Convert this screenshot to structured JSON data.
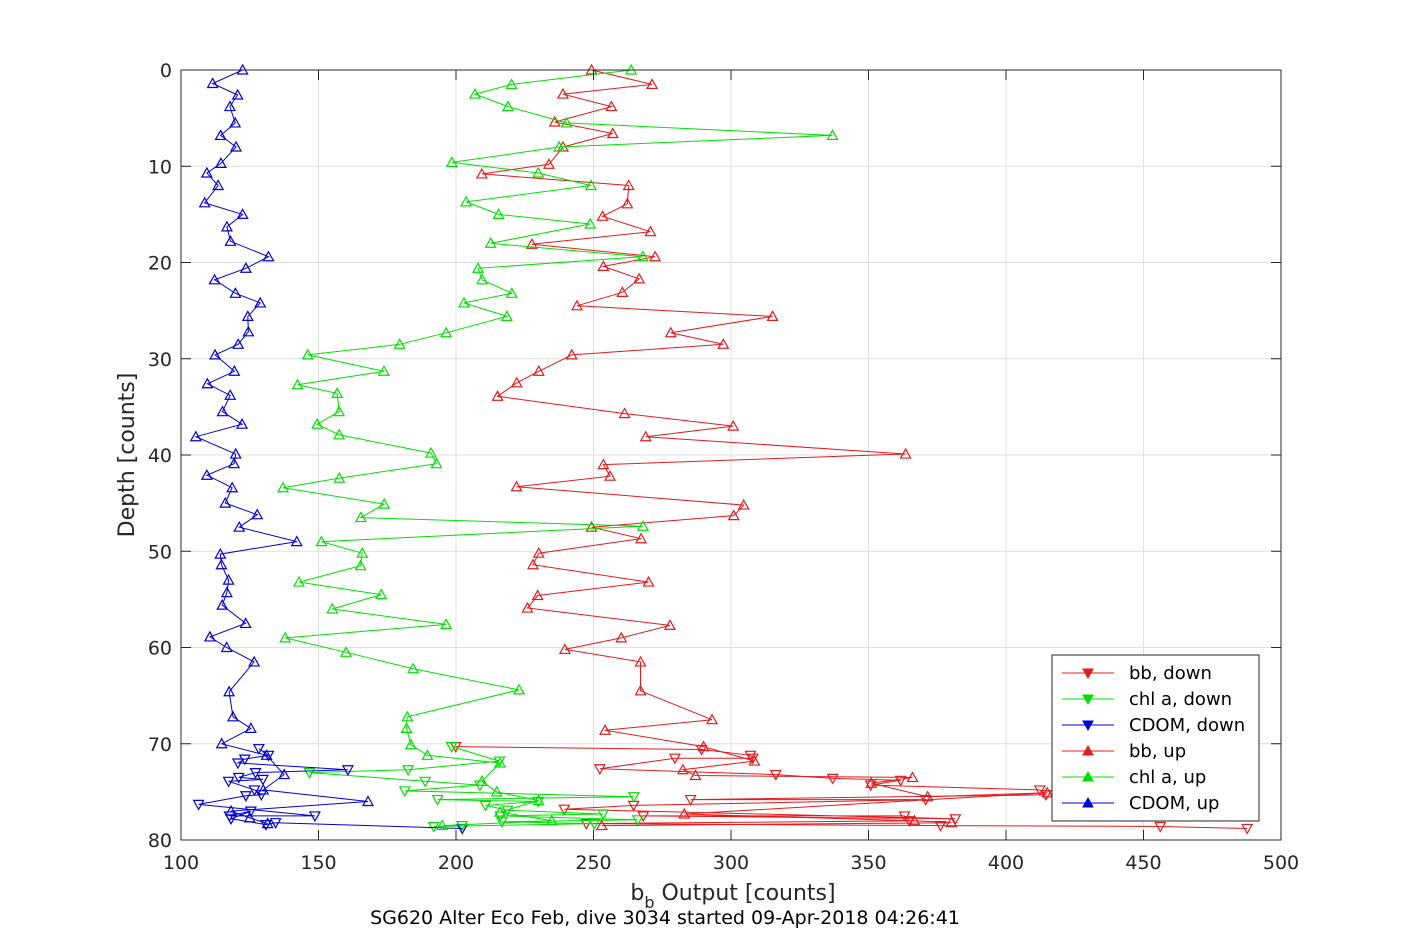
{
  "chart_data": {
    "type": "line",
    "xlabel_main": "b",
    "xlabel_sub": "b",
    "xlabel_rest": " Output [counts]",
    "ylabel": "Depth [counts]",
    "caption": "SG620 Alter Eco Feb, dive 3034 started 09-Apr-2018 04:26:41",
    "xlim": [
      100,
      500
    ],
    "ylim": [
      0,
      80
    ],
    "y_reversed": true,
    "grid": true,
    "legend_position": "bottom-right",
    "xticks": [
      100,
      150,
      200,
      250,
      300,
      350,
      400,
      450,
      500
    ],
    "yticks": [
      0,
      10,
      20,
      30,
      40,
      50,
      60,
      70,
      80
    ],
    "series": [
      {
        "name": "bb, down",
        "color": "#e41a1c",
        "marker": "triangle-down",
        "points": [
          [
            199.9,
            70.3
          ],
          [
            289.3,
            70.6
          ],
          [
            307.1,
            71.2
          ],
          [
            307.9,
            71.5
          ],
          [
            279.6,
            71.5
          ],
          [
            252.3,
            72.6
          ],
          [
            316.3,
            73.2
          ],
          [
            337.0,
            73.6
          ],
          [
            361.7,
            73.8
          ],
          [
            350.8,
            74.3
          ],
          [
            412.3,
            74.8
          ],
          [
            414.5,
            75.3
          ],
          [
            285.3,
            75.8
          ],
          [
            370.8,
            75.8
          ],
          [
            264.6,
            76.4
          ],
          [
            239.4,
            76.8
          ],
          [
            381.6,
            77.8
          ],
          [
            268.1,
            77.5
          ],
          [
            363.1,
            77.5
          ],
          [
            364.9,
            78.0
          ],
          [
            247.4,
            78.3
          ],
          [
            376.2,
            78.5
          ],
          [
            456.1,
            78.6
          ],
          [
            487.7,
            78.8
          ]
        ]
      },
      {
        "name": "chl a, down",
        "color": "#00e000",
        "marker": "triangle-down",
        "points": [
          [
            198.4,
            70.3
          ],
          [
            215.8,
            71.8
          ],
          [
            182.6,
            72.7
          ],
          [
            146.7,
            73.0
          ],
          [
            188.8,
            73.9
          ],
          [
            208.7,
            74.3
          ],
          [
            181.4,
            74.9
          ],
          [
            264.7,
            75.5
          ],
          [
            193.3,
            75.8
          ],
          [
            229.9,
            76.0
          ],
          [
            210.7,
            76.4
          ],
          [
            218.7,
            76.9
          ],
          [
            253.5,
            77.3
          ],
          [
            216.1,
            77.5
          ],
          [
            266.1,
            77.9
          ],
          [
            216.7,
            78.1
          ],
          [
            250.3,
            78.3
          ],
          [
            191.9,
            78.6
          ],
          [
            202.2,
            78.5
          ]
        ]
      },
      {
        "name": "CDOM, down",
        "color": "#0000d9",
        "marker": "triangle-down",
        "points": [
          [
            128.3,
            70.5
          ],
          [
            131.8,
            71.2
          ],
          [
            123.2,
            71.6
          ],
          [
            120.7,
            72.0
          ],
          [
            160.7,
            72.7
          ],
          [
            127.1,
            73.0
          ],
          [
            121.0,
            73.5
          ],
          [
            129.8,
            73.7
          ],
          [
            117.3,
            73.9
          ],
          [
            126.7,
            74.8
          ],
          [
            129.2,
            75.3
          ],
          [
            123.6,
            75.4
          ],
          [
            106.4,
            76.3
          ],
          [
            148.7,
            77.5
          ],
          [
            117.6,
            77.5
          ],
          [
            125.4,
            77.0
          ],
          [
            118.2,
            77.8
          ],
          [
            130.9,
            78.4
          ],
          [
            134.4,
            78.2
          ],
          [
            202.3,
            78.8
          ]
        ]
      },
      {
        "name": "bb, up",
        "color": "#e41a1c",
        "marker": "triangle-up",
        "points": [
          [
            249.3,
            0.0
          ],
          [
            271.3,
            1.5
          ],
          [
            238.9,
            2.5
          ],
          [
            256.5,
            3.8
          ],
          [
            235.9,
            5.4
          ],
          [
            257.0,
            6.6
          ],
          [
            238.9,
            8.0
          ],
          [
            233.8,
            9.8
          ],
          [
            209.4,
            10.8
          ],
          [
            262.8,
            12.0
          ],
          [
            262.3,
            13.9
          ],
          [
            253.3,
            15.2
          ],
          [
            270.7,
            16.8
          ],
          [
            227.6,
            18.1
          ],
          [
            272.4,
            19.4
          ],
          [
            253.6,
            20.4
          ],
          [
            266.6,
            21.7
          ],
          [
            260.5,
            23.1
          ],
          [
            244.0,
            24.5
          ],
          [
            315.1,
            25.6
          ],
          [
            278.1,
            27.3
          ],
          [
            297.2,
            28.5
          ],
          [
            242.1,
            29.6
          ],
          [
            230.1,
            31.3
          ],
          [
            222.1,
            32.5
          ],
          [
            215.1,
            33.9
          ],
          [
            261.3,
            35.7
          ],
          [
            300.8,
            37.0
          ],
          [
            269.0,
            38.1
          ],
          [
            363.5,
            39.9
          ],
          [
            253.6,
            41.0
          ],
          [
            256.0,
            42.2
          ],
          [
            222.0,
            43.3
          ],
          [
            304.6,
            45.2
          ],
          [
            301.0,
            46.3
          ],
          [
            249.3,
            47.5
          ],
          [
            267.3,
            48.7
          ],
          [
            230.1,
            50.2
          ],
          [
            228.0,
            51.4
          ],
          [
            270.0,
            53.2
          ],
          [
            229.7,
            54.6
          ],
          [
            226.0,
            55.9
          ],
          [
            277.8,
            57.7
          ],
          [
            260.1,
            59.0
          ],
          [
            239.6,
            60.2
          ],
          [
            267.1,
            61.5
          ],
          [
            267.1,
            64.5
          ],
          [
            293.1,
            67.5
          ],
          [
            254.2,
            68.6
          ],
          [
            290.0,
            70.3
          ],
          [
            308.5,
            71.8
          ],
          [
            282.5,
            72.7
          ],
          [
            287.1,
            73.3
          ],
          [
            366.0,
            73.5
          ],
          [
            351.0,
            74.1
          ],
          [
            371.5,
            75.5
          ],
          [
            415.0,
            75.1
          ],
          [
            283.0,
            77.3
          ],
          [
            366.7,
            78.0
          ],
          [
            380.1,
            78.2
          ],
          [
            253.0,
            78.5
          ]
        ]
      },
      {
        "name": "chl a, up",
        "color": "#00e000",
        "marker": "triangle-up",
        "points": [
          [
            263.7,
            0.0
          ],
          [
            220.2,
            1.5
          ],
          [
            206.9,
            2.5
          ],
          [
            218.9,
            3.8
          ],
          [
            240.2,
            5.5
          ],
          [
            336.9,
            6.8
          ],
          [
            237.5,
            8.0
          ],
          [
            198.5,
            9.6
          ],
          [
            229.9,
            10.7
          ],
          [
            249.1,
            12.0
          ],
          [
            203.7,
            13.7
          ],
          [
            215.5,
            15.0
          ],
          [
            248.8,
            16.0
          ],
          [
            212.6,
            18.0
          ],
          [
            267.9,
            19.4
          ],
          [
            208.0,
            20.6
          ],
          [
            209.5,
            21.8
          ],
          [
            220.3,
            23.2
          ],
          [
            202.9,
            24.2
          ],
          [
            218.5,
            25.6
          ],
          [
            196.4,
            27.3
          ],
          [
            179.5,
            28.5
          ],
          [
            146.1,
            29.6
          ],
          [
            173.8,
            31.3
          ],
          [
            142.4,
            32.7
          ],
          [
            156.8,
            33.6
          ],
          [
            157.5,
            35.5
          ],
          [
            149.5,
            36.8
          ],
          [
            157.5,
            37.9
          ],
          [
            190.9,
            39.8
          ],
          [
            192.9,
            40.9
          ],
          [
            157.6,
            42.4
          ],
          [
            137.1,
            43.4
          ],
          [
            173.9,
            45.1
          ],
          [
            165.4,
            46.5
          ],
          [
            268.0,
            47.4
          ],
          [
            151.1,
            49.0
          ],
          [
            165.9,
            50.2
          ],
          [
            165.3,
            51.5
          ],
          [
            142.9,
            53.2
          ],
          [
            172.8,
            54.5
          ],
          [
            155.0,
            56.0
          ],
          [
            196.4,
            57.6
          ],
          [
            137.9,
            59.0
          ],
          [
            160.0,
            60.5
          ],
          [
            184.4,
            62.2
          ],
          [
            222.9,
            64.4
          ],
          [
            182.3,
            67.2
          ],
          [
            182.0,
            68.4
          ],
          [
            183.6,
            70.1
          ],
          [
            189.6,
            71.2
          ],
          [
            216.0,
            72.0
          ],
          [
            209.4,
            73.9
          ],
          [
            214.8,
            75.0
          ],
          [
            230.0,
            75.9
          ],
          [
            216.0,
            77.1
          ],
          [
            234.8,
            78.0
          ],
          [
            195.0,
            78.5
          ]
        ]
      },
      {
        "name": "CDOM, up",
        "color": "#0000d9",
        "marker": "triangle-up",
        "points": [
          [
            122.4,
            0.0
          ],
          [
            111.5,
            1.4
          ],
          [
            120.6,
            2.6
          ],
          [
            117.8,
            3.8
          ],
          [
            119.7,
            5.5
          ],
          [
            114.4,
            6.8
          ],
          [
            120.0,
            8.0
          ],
          [
            114.5,
            9.7
          ],
          [
            109.4,
            10.7
          ],
          [
            113.5,
            12.0
          ],
          [
            108.6,
            13.8
          ],
          [
            122.4,
            15.0
          ],
          [
            116.7,
            16.3
          ],
          [
            118.0,
            17.8
          ],
          [
            131.8,
            19.4
          ],
          [
            123.6,
            20.6
          ],
          [
            112.2,
            21.8
          ],
          [
            119.8,
            23.2
          ],
          [
            128.8,
            24.2
          ],
          [
            124.3,
            25.6
          ],
          [
            124.5,
            27.2
          ],
          [
            120.8,
            28.5
          ],
          [
            112.4,
            29.6
          ],
          [
            119.4,
            31.3
          ],
          [
            109.6,
            32.6
          ],
          [
            117.9,
            33.8
          ],
          [
            115.1,
            35.5
          ],
          [
            122.2,
            36.8
          ],
          [
            105.4,
            38.1
          ],
          [
            119.9,
            39.9
          ],
          [
            119.3,
            40.9
          ],
          [
            109.4,
            42.1
          ],
          [
            118.6,
            43.4
          ],
          [
            116.1,
            45.0
          ],
          [
            127.7,
            46.2
          ],
          [
            121.2,
            47.5
          ],
          [
            142.1,
            49.0
          ],
          [
            114.3,
            50.3
          ],
          [
            114.7,
            51.4
          ],
          [
            117.3,
            53.0
          ],
          [
            116.7,
            54.3
          ],
          [
            115.0,
            55.6
          ],
          [
            123.5,
            57.5
          ],
          [
            110.5,
            58.9
          ],
          [
            116.6,
            60.0
          ],
          [
            126.6,
            61.5
          ],
          [
            117.5,
            64.6
          ],
          [
            118.9,
            67.2
          ],
          [
            125.4,
            68.4
          ],
          [
            114.8,
            70.0
          ],
          [
            131.1,
            71.2
          ],
          [
            137.5,
            73.2
          ],
          [
            129.9,
            74.8
          ],
          [
            168.0,
            76.0
          ],
          [
            118.2,
            77.0
          ],
          [
            125.0,
            77.7
          ],
          [
            131.5,
            78.3
          ]
        ]
      }
    ]
  }
}
